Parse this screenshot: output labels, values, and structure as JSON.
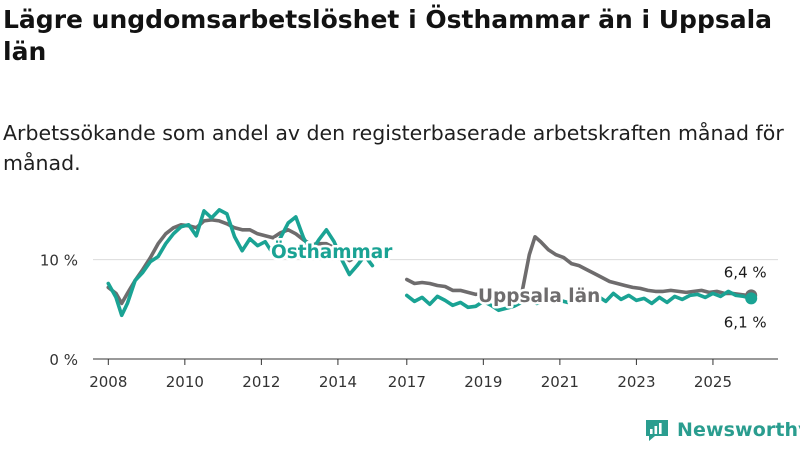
{
  "title": "Lägre ungdomsarbetslöshet i Östhammar än i Uppsala län",
  "subtitle": "Arbetssökande som andel av den registerbaserade arbetskraften månad för månad.",
  "brand": "Newsworthy",
  "colors": {
    "osthammar": "#1aa394",
    "uppsala": "#6e6c6d",
    "axis": "#333333",
    "grid": "#dcdcdc",
    "brand": "#2a9d8f"
  },
  "chart_data": {
    "type": "line",
    "x_tick_labels": [
      "2008",
      "2010",
      "2012",
      "2014",
      "2017",
      "2019",
      "2021",
      "2023",
      "2025"
    ],
    "x_tick_years": [
      2008,
      2010,
      2012,
      2014,
      2017,
      2019,
      2021,
      2023,
      2025
    ],
    "y_tick_labels": [
      "0 %",
      "10 %"
    ],
    "y_ticks": [
      0,
      10
    ],
    "ylim": [
      0,
      16
    ],
    "xlim": [
      2007.6,
      2026.7
    ],
    "gaps": [
      [
        2015.0,
        2016.9
      ]
    ],
    "series": [
      {
        "name": "Östhammar",
        "label": "Östhammar",
        "end_label": "6,1 %",
        "points": [
          [
            2008.0,
            7.6
          ],
          [
            2008.2,
            6.2
          ],
          [
            2008.35,
            4.4
          ],
          [
            2008.5,
            5.6
          ],
          [
            2008.7,
            7.9
          ],
          [
            2008.9,
            8.7
          ],
          [
            2009.1,
            9.8
          ],
          [
            2009.3,
            10.3
          ],
          [
            2009.5,
            11.6
          ],
          [
            2009.7,
            12.6
          ],
          [
            2009.9,
            13.3
          ],
          [
            2010.1,
            13.5
          ],
          [
            2010.3,
            12.4
          ],
          [
            2010.5,
            14.9
          ],
          [
            2010.7,
            14.2
          ],
          [
            2010.9,
            15.0
          ],
          [
            2011.1,
            14.6
          ],
          [
            2011.3,
            12.3
          ],
          [
            2011.5,
            10.9
          ],
          [
            2011.7,
            12.1
          ],
          [
            2011.9,
            11.4
          ],
          [
            2012.1,
            11.8
          ],
          [
            2012.3,
            10.6
          ],
          [
            2012.5,
            12.2
          ],
          [
            2012.7,
            13.7
          ],
          [
            2012.9,
            14.3
          ],
          [
            2013.1,
            12.2
          ],
          [
            2013.3,
            10.8
          ],
          [
            2013.5,
            12.0
          ],
          [
            2013.7,
            13.0
          ],
          [
            2013.9,
            11.8
          ],
          [
            2014.1,
            10.0
          ],
          [
            2014.3,
            8.5
          ],
          [
            2014.5,
            9.4
          ],
          [
            2014.7,
            10.4
          ],
          [
            2014.9,
            9.4
          ],
          [
            2017.0,
            6.4
          ],
          [
            2017.2,
            5.8
          ],
          [
            2017.4,
            6.2
          ],
          [
            2017.6,
            5.5
          ],
          [
            2017.8,
            6.3
          ],
          [
            2018.0,
            5.9
          ],
          [
            2018.2,
            5.4
          ],
          [
            2018.4,
            5.7
          ],
          [
            2018.6,
            5.2
          ],
          [
            2018.8,
            5.3
          ],
          [
            2019.0,
            5.8
          ],
          [
            2019.2,
            5.4
          ],
          [
            2019.4,
            4.9
          ],
          [
            2019.6,
            5.1
          ],
          [
            2019.8,
            5.3
          ],
          [
            2020.0,
            5.7
          ],
          [
            2020.2,
            5.9
          ],
          [
            2020.4,
            5.6
          ],
          [
            2020.6,
            5.8
          ],
          [
            2020.8,
            6.8
          ],
          [
            2021.0,
            5.9
          ],
          [
            2021.2,
            5.7
          ],
          [
            2021.4,
            6.1
          ],
          [
            2021.6,
            5.8
          ],
          [
            2021.8,
            6.0
          ],
          [
            2022.0,
            6.3
          ],
          [
            2022.2,
            5.8
          ],
          [
            2022.4,
            6.6
          ],
          [
            2022.6,
            6.0
          ],
          [
            2022.8,
            6.4
          ],
          [
            2023.0,
            5.9
          ],
          [
            2023.2,
            6.1
          ],
          [
            2023.4,
            5.6
          ],
          [
            2023.6,
            6.2
          ],
          [
            2023.8,
            5.7
          ],
          [
            2024.0,
            6.3
          ],
          [
            2024.2,
            6.0
          ],
          [
            2024.4,
            6.4
          ],
          [
            2024.6,
            6.5
          ],
          [
            2024.8,
            6.2
          ],
          [
            2025.0,
            6.6
          ],
          [
            2025.2,
            6.3
          ],
          [
            2025.4,
            6.8
          ],
          [
            2025.6,
            6.4
          ],
          [
            2025.8,
            6.3
          ],
          [
            2026.0,
            6.1
          ]
        ]
      },
      {
        "name": "Uppsala län",
        "label": "Uppsala län",
        "end_label": "6,4 %",
        "points": [
          [
            2008.0,
            7.2
          ],
          [
            2008.2,
            6.6
          ],
          [
            2008.35,
            5.6
          ],
          [
            2008.5,
            6.6
          ],
          [
            2008.7,
            7.9
          ],
          [
            2008.9,
            9.0
          ],
          [
            2009.1,
            10.2
          ],
          [
            2009.3,
            11.6
          ],
          [
            2009.5,
            12.6
          ],
          [
            2009.7,
            13.2
          ],
          [
            2009.9,
            13.5
          ],
          [
            2010.1,
            13.4
          ],
          [
            2010.3,
            13.2
          ],
          [
            2010.5,
            13.9
          ],
          [
            2010.7,
            14.0
          ],
          [
            2010.9,
            13.9
          ],
          [
            2011.1,
            13.6
          ],
          [
            2011.3,
            13.2
          ],
          [
            2011.5,
            13.0
          ],
          [
            2011.7,
            13.0
          ],
          [
            2011.9,
            12.6
          ],
          [
            2012.1,
            12.4
          ],
          [
            2012.3,
            12.2
          ],
          [
            2012.5,
            12.7
          ],
          [
            2012.7,
            13.0
          ],
          [
            2012.9,
            12.6
          ],
          [
            2013.1,
            12.0
          ],
          [
            2013.3,
            11.5
          ],
          [
            2013.5,
            11.6
          ],
          [
            2013.7,
            11.6
          ],
          [
            2013.9,
            11.2
          ],
          [
            2014.1,
            10.5
          ],
          [
            2014.3,
            9.9
          ],
          [
            2014.5,
            10.3
          ],
          [
            2014.7,
            10.4
          ],
          [
            2014.9,
            10.2
          ],
          [
            2017.0,
            8.0
          ],
          [
            2017.2,
            7.6
          ],
          [
            2017.4,
            7.7
          ],
          [
            2017.6,
            7.6
          ],
          [
            2017.8,
            7.4
          ],
          [
            2018.0,
            7.3
          ],
          [
            2018.2,
            6.9
          ],
          [
            2018.4,
            6.9
          ],
          [
            2018.6,
            6.7
          ],
          [
            2018.8,
            6.5
          ],
          [
            2019.0,
            6.6
          ],
          [
            2019.2,
            6.5
          ],
          [
            2019.4,
            6.4
          ],
          [
            2019.6,
            6.3
          ],
          [
            2019.8,
            6.4
          ],
          [
            2020.0,
            6.5
          ],
          [
            2020.2,
            10.5
          ],
          [
            2020.35,
            12.3
          ],
          [
            2020.5,
            11.8
          ],
          [
            2020.7,
            11.0
          ],
          [
            2020.9,
            10.5
          ],
          [
            2021.1,
            10.2
          ],
          [
            2021.3,
            9.6
          ],
          [
            2021.5,
            9.4
          ],
          [
            2021.7,
            9.0
          ],
          [
            2021.9,
            8.6
          ],
          [
            2022.1,
            8.2
          ],
          [
            2022.3,
            7.8
          ],
          [
            2022.5,
            7.6
          ],
          [
            2022.7,
            7.4
          ],
          [
            2022.9,
            7.2
          ],
          [
            2023.1,
            7.1
          ],
          [
            2023.3,
            6.9
          ],
          [
            2023.5,
            6.8
          ],
          [
            2023.7,
            6.8
          ],
          [
            2023.9,
            6.9
          ],
          [
            2024.1,
            6.8
          ],
          [
            2024.3,
            6.7
          ],
          [
            2024.5,
            6.8
          ],
          [
            2024.7,
            6.9
          ],
          [
            2024.9,
            6.7
          ],
          [
            2025.1,
            6.8
          ],
          [
            2025.3,
            6.6
          ],
          [
            2025.5,
            6.6
          ],
          [
            2025.7,
            6.5
          ],
          [
            2025.9,
            6.4
          ],
          [
            2026.0,
            6.4
          ]
        ]
      }
    ],
    "label_positions": [
      "Östhammar: above series near 2013",
      "Uppsala län: below-right near 2018"
    ],
    "grid": "horizontal",
    "legend": "inline labels"
  }
}
